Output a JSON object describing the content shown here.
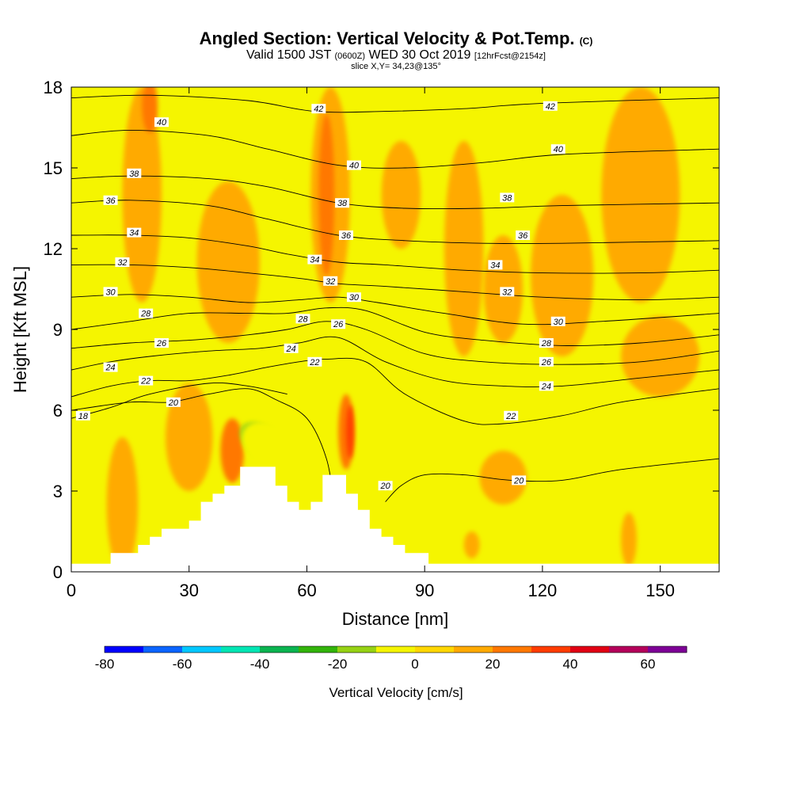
{
  "header": {
    "title": "Angled Section: Vertical Velocity & Pot.Temp.",
    "title_unit": "(C)",
    "valid_prefix": "Valid 1500 JST",
    "valid_utc": "(0600Z)",
    "valid_date": "WED 30 Oct 2019",
    "forecast": "[12hrFcst@2154z]",
    "slice": "slice X,Y= 34,23@135°"
  },
  "chart_data": {
    "type": "heatmap",
    "xlabel": "Distance [nm]",
    "ylabel": "Height [Kft MSL]",
    "xlim": [
      0,
      165
    ],
    "ylim": [
      0,
      18
    ],
    "x_ticks": [
      0,
      30,
      60,
      90,
      120,
      150
    ],
    "y_ticks": [
      0,
      3,
      6,
      9,
      12,
      15,
      18
    ],
    "colorbar": {
      "label": "Vertical Velocity [cm/s]",
      "ticks": [
        -80,
        -60,
        -40,
        -20,
        0,
        20,
        40,
        60
      ],
      "range": [
        -80,
        70
      ],
      "step": 10,
      "colors": [
        "#0000ff",
        "#0a64ff",
        "#00c8ff",
        "#00e6b4",
        "#0ab450",
        "#32b40a",
        "#96d214",
        "#f5f500",
        "#ffd700",
        "#ffaa00",
        "#ff7800",
        "#ff3c00",
        "#e10014",
        "#b4005a",
        "#7d0096"
      ]
    },
    "background_color": "#f5f500",
    "terrain": [
      [
        0,
        0.3
      ],
      [
        10,
        0.3
      ],
      [
        10,
        0.7
      ],
      [
        17,
        0.7
      ],
      [
        17,
        1.0
      ],
      [
        20,
        1.0
      ],
      [
        20,
        1.3
      ],
      [
        23,
        1.3
      ],
      [
        23,
        1.6
      ],
      [
        30,
        1.6
      ],
      [
        30,
        1.9
      ],
      [
        33,
        1.9
      ],
      [
        33,
        2.6
      ],
      [
        36,
        2.6
      ],
      [
        36,
        2.9
      ],
      [
        39,
        2.9
      ],
      [
        39,
        3.2
      ],
      [
        43,
        3.2
      ],
      [
        43,
        3.9
      ],
      [
        52,
        3.9
      ],
      [
        52,
        3.2
      ],
      [
        55,
        3.2
      ],
      [
        55,
        2.6
      ],
      [
        58,
        2.6
      ],
      [
        58,
        2.3
      ],
      [
        61,
        2.3
      ],
      [
        61,
        2.6
      ],
      [
        64,
        2.6
      ],
      [
        64,
        3.6
      ],
      [
        70,
        3.6
      ],
      [
        70,
        2.9
      ],
      [
        73,
        2.9
      ],
      [
        73,
        2.3
      ],
      [
        76,
        2.3
      ],
      [
        76,
        1.6
      ],
      [
        79,
        1.6
      ],
      [
        79,
        1.3
      ],
      [
        82,
        1.3
      ],
      [
        82,
        1.0
      ],
      [
        85,
        1.0
      ],
      [
        85,
        0.7
      ],
      [
        91,
        0.7
      ],
      [
        91,
        0.3
      ],
      [
        165,
        0.3
      ]
    ],
    "isentropes": [
      {
        "value": 18,
        "points": [
          [
            0,
            5.7
          ],
          [
            10,
            6.1
          ],
          [
            20,
            6.6
          ],
          [
            35,
            7.0
          ],
          [
            45,
            6.9
          ],
          [
            55,
            6.6
          ]
        ]
      },
      {
        "value": 20,
        "points": [
          [
            0,
            6.0
          ],
          [
            15,
            6.3
          ],
          [
            25,
            6.3
          ],
          [
            35,
            6.6
          ],
          [
            45,
            6.8
          ],
          [
            52,
            6.4
          ],
          [
            60,
            5.7
          ],
          [
            65,
            4.2
          ],
          [
            67,
            2.5
          ]
        ]
      },
      {
        "value": 20,
        "points": [
          [
            80,
            2.6
          ],
          [
            84,
            3.2
          ],
          [
            90,
            3.6
          ],
          [
            100,
            3.6
          ],
          [
            112,
            3.4
          ],
          [
            125,
            3.4
          ],
          [
            140,
            3.8
          ],
          [
            165,
            4.2
          ]
        ]
      },
      {
        "value": 22,
        "points": [
          [
            0,
            6.5
          ],
          [
            10,
            6.9
          ],
          [
            20,
            7.1
          ],
          [
            30,
            7.1
          ],
          [
            40,
            7.3
          ],
          [
            50,
            7.6
          ],
          [
            58,
            7.8
          ],
          [
            65,
            7.9
          ],
          [
            75,
            7.8
          ],
          [
            85,
            6.6
          ],
          [
            100,
            5.6
          ],
          [
            110,
            5.5
          ],
          [
            125,
            5.8
          ],
          [
            140,
            6.3
          ],
          [
            165,
            6.8
          ]
        ]
      },
      {
        "value": 24,
        "points": [
          [
            0,
            7.5
          ],
          [
            10,
            7.8
          ],
          [
            20,
            8.0
          ],
          [
            35,
            8.2
          ],
          [
            48,
            8.3
          ],
          [
            58,
            8.5
          ],
          [
            68,
            8.7
          ],
          [
            80,
            7.8
          ],
          [
            95,
            7.1
          ],
          [
            110,
            6.9
          ],
          [
            125,
            6.9
          ],
          [
            145,
            7.2
          ],
          [
            165,
            7.5
          ]
        ]
      },
      {
        "value": 26,
        "points": [
          [
            0,
            8.3
          ],
          [
            15,
            8.5
          ],
          [
            30,
            8.6
          ],
          [
            45,
            8.8
          ],
          [
            55,
            9.0
          ],
          [
            65,
            9.3
          ],
          [
            75,
            9.0
          ],
          [
            90,
            8.1
          ],
          [
            105,
            7.8
          ],
          [
            125,
            7.7
          ],
          [
            145,
            7.8
          ],
          [
            165,
            8.2
          ]
        ]
      },
      {
        "value": 28,
        "points": [
          [
            0,
            9.0
          ],
          [
            15,
            9.3
          ],
          [
            30,
            9.6
          ],
          [
            45,
            9.6
          ],
          [
            55,
            9.6
          ],
          [
            65,
            9.8
          ],
          [
            75,
            9.7
          ],
          [
            90,
            8.9
          ],
          [
            105,
            8.6
          ],
          [
            125,
            8.4
          ],
          [
            145,
            8.5
          ],
          [
            165,
            8.8
          ]
        ]
      },
      {
        "value": 30,
        "points": [
          [
            0,
            10.2
          ],
          [
            15,
            10.3
          ],
          [
            30,
            10.2
          ],
          [
            45,
            10.0
          ],
          [
            58,
            10.1
          ],
          [
            68,
            10.2
          ],
          [
            78,
            10.0
          ],
          [
            95,
            9.6
          ],
          [
            115,
            9.2
          ],
          [
            135,
            9.3
          ],
          [
            165,
            9.6
          ]
        ]
      },
      {
        "value": 32,
        "points": [
          [
            0,
            11.4
          ],
          [
            15,
            11.4
          ],
          [
            30,
            11.3
          ],
          [
            45,
            11.1
          ],
          [
            58,
            10.9
          ],
          [
            68,
            10.7
          ],
          [
            80,
            10.6
          ],
          [
            100,
            10.4
          ],
          [
            120,
            10.2
          ],
          [
            145,
            10.1
          ],
          [
            165,
            10.2
          ]
        ]
      },
      {
        "value": 34,
        "points": [
          [
            0,
            12.5
          ],
          [
            15,
            12.5
          ],
          [
            30,
            12.4
          ],
          [
            45,
            12.1
          ],
          [
            55,
            11.8
          ],
          [
            68,
            11.5
          ],
          [
            80,
            11.4
          ],
          [
            100,
            11.2
          ],
          [
            120,
            11.1
          ],
          [
            145,
            11.1
          ],
          [
            165,
            11.2
          ]
        ]
      },
      {
        "value": 36,
        "points": [
          [
            0,
            13.7
          ],
          [
            15,
            13.8
          ],
          [
            35,
            13.6
          ],
          [
            50,
            13.1
          ],
          [
            68,
            12.5
          ],
          [
            85,
            12.3
          ],
          [
            105,
            12.2
          ],
          [
            125,
            12.2
          ],
          [
            165,
            12.3
          ]
        ]
      },
      {
        "value": 38,
        "points": [
          [
            0,
            14.6
          ],
          [
            15,
            14.7
          ],
          [
            35,
            14.6
          ],
          [
            50,
            14.3
          ],
          [
            68,
            13.7
          ],
          [
            85,
            13.5
          ],
          [
            105,
            13.5
          ],
          [
            125,
            13.6
          ],
          [
            165,
            13.7
          ]
        ]
      },
      {
        "value": 40,
        "points": [
          [
            0,
            16.2
          ],
          [
            15,
            16.4
          ],
          [
            35,
            16.2
          ],
          [
            50,
            15.7
          ],
          [
            68,
            15.1
          ],
          [
            85,
            15.0
          ],
          [
            105,
            15.2
          ],
          [
            125,
            15.5
          ],
          [
            165,
            15.7
          ]
        ]
      },
      {
        "value": 42,
        "points": [
          [
            0,
            17.6
          ],
          [
            20,
            17.7
          ],
          [
            45,
            17.5
          ],
          [
            62,
            17.1
          ],
          [
            80,
            17.1
          ],
          [
            100,
            17.2
          ],
          [
            120,
            17.4
          ],
          [
            165,
            17.6
          ]
        ]
      }
    ],
    "contour_labels": [
      {
        "text": "42",
        "x": 63,
        "y": 17.2
      },
      {
        "text": "42",
        "x": 122,
        "y": 17.3
      },
      {
        "text": "40",
        "x": 23,
        "y": 16.7
      },
      {
        "text": "40",
        "x": 72,
        "y": 15.1
      },
      {
        "text": "40",
        "x": 124,
        "y": 15.7
      },
      {
        "text": "38",
        "x": 16,
        "y": 14.8
      },
      {
        "text": "38",
        "x": 69,
        "y": 13.7
      },
      {
        "text": "38",
        "x": 111,
        "y": 13.9
      },
      {
        "text": "36",
        "x": 10,
        "y": 13.8
      },
      {
        "text": "36",
        "x": 70,
        "y": 12.5
      },
      {
        "text": "36",
        "x": 115,
        "y": 12.5
      },
      {
        "text": "34",
        "x": 16,
        "y": 12.6
      },
      {
        "text": "34",
        "x": 62,
        "y": 11.6
      },
      {
        "text": "34",
        "x": 108,
        "y": 11.4
      },
      {
        "text": "32",
        "x": 13,
        "y": 11.5
      },
      {
        "text": "32",
        "x": 66,
        "y": 10.8
      },
      {
        "text": "32",
        "x": 111,
        "y": 10.4
      },
      {
        "text": "30",
        "x": 10,
        "y": 10.4
      },
      {
        "text": "30",
        "x": 72,
        "y": 10.2
      },
      {
        "text": "30",
        "x": 124,
        "y": 9.3
      },
      {
        "text": "28",
        "x": 19,
        "y": 9.6
      },
      {
        "text": "28",
        "x": 59,
        "y": 9.4
      },
      {
        "text": "28",
        "x": 121,
        "y": 8.5
      },
      {
        "text": "26",
        "x": 23,
        "y": 8.5
      },
      {
        "text": "26",
        "x": 68,
        "y": 9.2
      },
      {
        "text": "26",
        "x": 121,
        "y": 7.8
      },
      {
        "text": "24",
        "x": 10,
        "y": 7.6
      },
      {
        "text": "24",
        "x": 56,
        "y": 8.3
      },
      {
        "text": "24",
        "x": 121,
        "y": 6.9
      },
      {
        "text": "22",
        "x": 19,
        "y": 7.1
      },
      {
        "text": "22",
        "x": 62,
        "y": 7.8
      },
      {
        "text": "22",
        "x": 112,
        "y": 5.8
      },
      {
        "text": "20",
        "x": 26,
        "y": 6.3
      },
      {
        "text": "20",
        "x": 80,
        "y": 3.2
      },
      {
        "text": "20",
        "x": 114,
        "y": 3.4
      },
      {
        "text": "18",
        "x": 3,
        "y": 5.8
      }
    ],
    "velocity_blobs": [
      {
        "value": 10,
        "x": 18,
        "y": 14.0,
        "rx": 5,
        "ry": 4.0,
        "angle": 0
      },
      {
        "value": 20,
        "x": 20,
        "y": 17.3,
        "rx": 2,
        "ry": 1.0,
        "angle": 0
      },
      {
        "value": -10,
        "x": 38,
        "y": 16.0,
        "rx": 8,
        "ry": 2.5,
        "angle": 0
      },
      {
        "value": -10,
        "x": 37,
        "y": 14.3,
        "rx": 5,
        "ry": 1.4,
        "angle": 0
      },
      {
        "value": 10,
        "x": 40,
        "y": 11.5,
        "rx": 8,
        "ry": 3.0,
        "angle": 0
      },
      {
        "value": 10,
        "x": 66,
        "y": 14.0,
        "rx": 5,
        "ry": 4.0,
        "angle": 0
      },
      {
        "value": 20,
        "x": 65,
        "y": 14.0,
        "rx": 2,
        "ry": 3.0,
        "angle": 0
      },
      {
        "value": 10,
        "x": 84,
        "y": 14.0,
        "rx": 5,
        "ry": 2.0,
        "angle": 0
      },
      {
        "value": 10,
        "x": 100,
        "y": 12.0,
        "rx": 5,
        "ry": 4.0,
        "angle": 0
      },
      {
        "value": 10,
        "x": 110,
        "y": 10.5,
        "rx": 5,
        "ry": 2.0,
        "angle": 0
      },
      {
        "value": 10,
        "x": 125,
        "y": 11.0,
        "rx": 8,
        "ry": 3.0,
        "angle": 0
      },
      {
        "value": 10,
        "x": 145,
        "y": 14.0,
        "rx": 10,
        "ry": 4.0,
        "angle": 0
      },
      {
        "value": 10,
        "x": 150,
        "y": 8.0,
        "rx": 10,
        "ry": 1.5,
        "angle": 0
      },
      {
        "value": 10,
        "x": 30,
        "y": 5.0,
        "rx": 6,
        "ry": 2.0,
        "angle": 0
      },
      {
        "value": 10,
        "x": 13,
        "y": 2.5,
        "rx": 4,
        "ry": 2.5,
        "angle": 0
      },
      {
        "value": 20,
        "x": 41,
        "y": 4.5,
        "rx": 3,
        "ry": 1.2,
        "angle": 0
      },
      {
        "value": -20,
        "x": 49,
        "y": 4.8,
        "rx": 4,
        "ry": 1.0,
        "angle": 55
      },
      {
        "value": -10,
        "x": 52,
        "y": 4.5,
        "rx": 6,
        "ry": 1.4,
        "angle": 55
      },
      {
        "value": 20,
        "x": 70,
        "y": 5.2,
        "rx": 2,
        "ry": 1.4,
        "angle": 0
      },
      {
        "value": 30,
        "x": 71,
        "y": 5.2,
        "rx": 1,
        "ry": 1.0,
        "angle": 0
      },
      {
        "value": -10,
        "x": 64,
        "y": 6.0,
        "rx": 2,
        "ry": 1.2,
        "angle": 0
      },
      {
        "value": -10,
        "x": 82,
        "y": 7.5,
        "rx": 3,
        "ry": 1.0,
        "angle": 45
      },
      {
        "value": -10,
        "x": 88,
        "y": 11.5,
        "rx": 1,
        "ry": 0.8,
        "angle": 0
      },
      {
        "value": 10,
        "x": 110,
        "y": 3.5,
        "rx": 6,
        "ry": 1.0,
        "angle": 0
      },
      {
        "value": 10,
        "x": 142,
        "y": 1.2,
        "rx": 2,
        "ry": 1.0,
        "angle": 0
      },
      {
        "value": -10,
        "x": 136,
        "y": 2.0,
        "rx": 1,
        "ry": 0.6,
        "angle": 0
      },
      {
        "value": 10,
        "x": 102,
        "y": 1.0,
        "rx": 2,
        "ry": 0.5,
        "angle": 0
      },
      {
        "value": -10,
        "x": 3,
        "y": 4.5,
        "rx": 1,
        "ry": 0.3,
        "angle": 0
      }
    ]
  }
}
